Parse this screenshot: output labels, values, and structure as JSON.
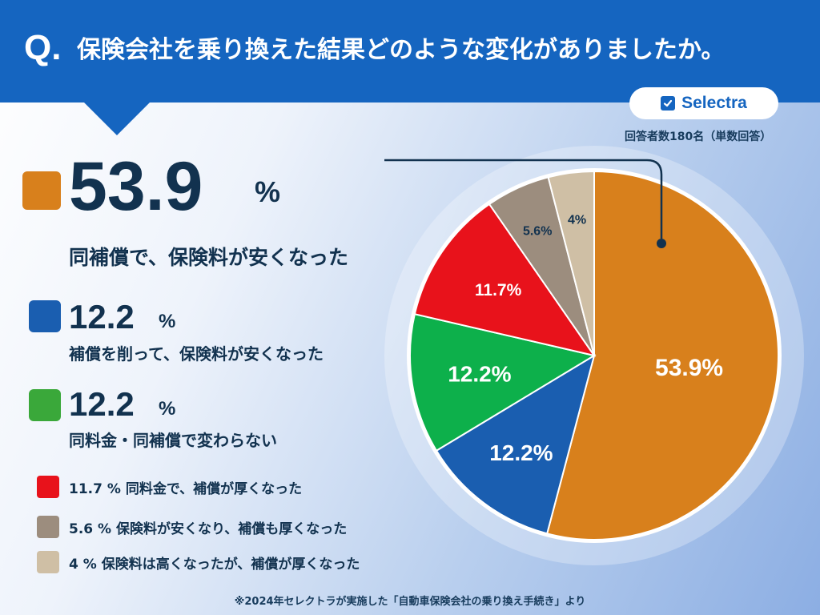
{
  "header": {
    "q_mark": "Q.",
    "question": "保険会社を乗り換えた結果どのような変化がありましたか。"
  },
  "brand": {
    "name": "Selectra"
  },
  "respondents": "回答者数180名（単数回答）",
  "percent_sign": "%",
  "results": {
    "top": {
      "value": "53.9",
      "label": "同補償で、保険料が安くなった"
    },
    "second": {
      "value": "12.2",
      "label": "補償を削って、保険料が安くなった"
    },
    "third": {
      "value": "12.2",
      "label": "同料金・同補償で変わらない"
    },
    "fourth": {
      "text": "11.7 % 同料金で、補償が厚くなった"
    },
    "fifth": {
      "text": "5.6 % 保険料が安くなり、補償も厚くなった"
    },
    "sixth": {
      "text": "4 % 保険料は高くなったが、補償が厚くなった"
    }
  },
  "footnote": "※2024年セレクトラが実施した「自動車保険会社の乗り換え手続き」より",
  "colors": {
    "header": "#1565c0",
    "orange": "#d8801c",
    "blue": "#1a5eb0",
    "green": "#0db04b",
    "red": "#e8121b",
    "taupe": "#9c8d7e",
    "beige": "#cfbfa5"
  },
  "chart_data": {
    "type": "pie",
    "title": "保険会社を乗り換えた結果どのような変化がありましたか。",
    "slices": [
      {
        "name": "同補償で、保険料が安くなった",
        "value": 53.9,
        "label": "53.9%",
        "color": "#d8801c"
      },
      {
        "name": "補償を削って、保険料が安くなった",
        "value": 12.2,
        "label": "12.2%",
        "color": "#1a5eb0"
      },
      {
        "name": "同料金・同補償で変わらない",
        "value": 12.2,
        "label": "12.2%",
        "color": "#0db04b"
      },
      {
        "name": "同料金で、補償が厚くなった",
        "value": 11.7,
        "label": "11.7%",
        "color": "#e8121b"
      },
      {
        "name": "保険料が安くなり、補償も厚くなった",
        "value": 5.6,
        "label": "5.6%",
        "color": "#9c8d7e"
      },
      {
        "name": "保険料は高くなったが、補償が厚くなった",
        "value": 4,
        "label": "4%",
        "color": "#cfbfa5"
      }
    ]
  }
}
